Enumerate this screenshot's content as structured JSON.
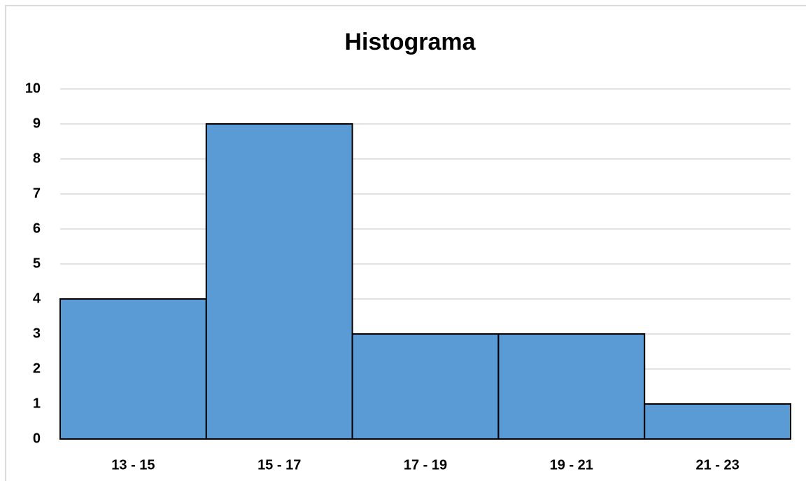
{
  "chart_data": {
    "type": "bar",
    "title": "Histograma",
    "categories": [
      "13 - 15",
      "15 - 17",
      "17 - 19",
      "19 - 21",
      "21 - 23"
    ],
    "values": [
      4,
      9,
      3,
      3,
      1
    ],
    "color": "#5b9bd5",
    "ylim": [
      0,
      10
    ],
    "yticks": [
      0,
      1,
      2,
      3,
      4,
      5,
      6,
      7,
      8,
      9,
      10
    ],
    "grid": true
  }
}
